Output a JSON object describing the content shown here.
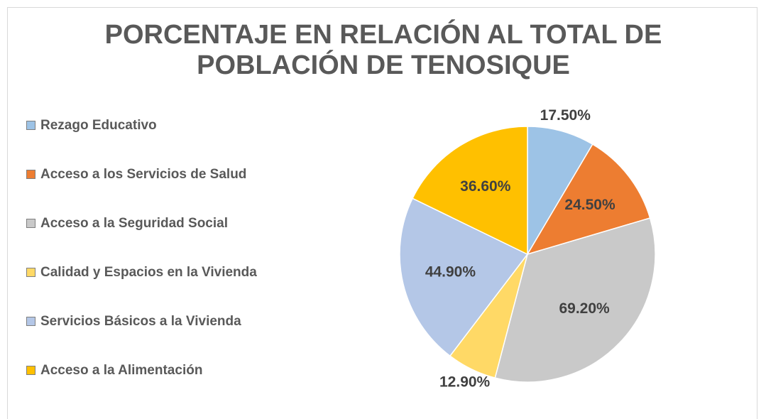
{
  "chart_data": {
    "type": "pie",
    "title": "PORCENTAJE EN RELACIÓN AL TOTAL DE POBLACIÓN DE TENOSIQUE",
    "categories": [
      "Rezago Educativo",
      "Acceso a los Servicios de Salud",
      "Acceso a la Seguridad Social",
      "Calidad y Espacios en la Vivienda",
      "Servicios Básicos a la Vivienda",
      "Acceso a la Alimentación"
    ],
    "values": [
      17.5,
      24.5,
      69.2,
      12.9,
      44.9,
      36.6
    ],
    "value_labels": [
      "17.50%",
      "24.50%",
      "69.20%",
      "12.90%",
      "44.90%",
      "36.60%"
    ],
    "colors": [
      "#9dc3e6",
      "#ed7d31",
      "#c9c9c9",
      "#ffd966",
      "#b4c7e7",
      "#ffc000"
    ],
    "legend": "left"
  }
}
